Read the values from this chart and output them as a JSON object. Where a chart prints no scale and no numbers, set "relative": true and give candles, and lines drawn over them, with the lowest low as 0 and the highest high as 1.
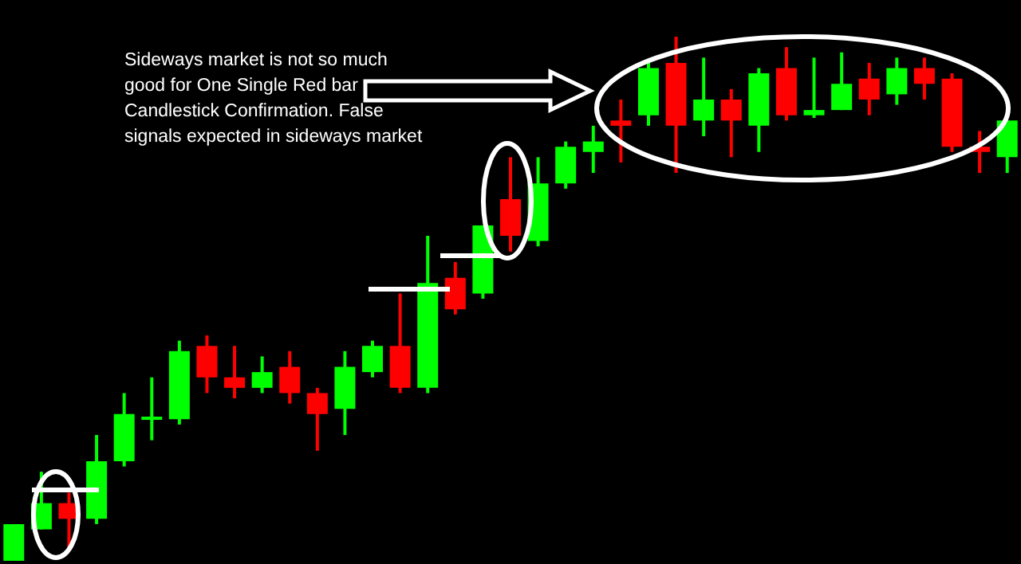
{
  "chart_data": {
    "type": "candlestick",
    "relative": true,
    "annotations": [
      "Sideways market is not so much good for One Single Red bar Candlestick Confirmation. False signals expected in sideways market"
    ],
    "categories": [
      null,
      null,
      null,
      null,
      null,
      null,
      null,
      null,
      null,
      null,
      null,
      null,
      null,
      null,
      null,
      null,
      null,
      null,
      null,
      null,
      null,
      null,
      null,
      null,
      null,
      null,
      null,
      null,
      null,
      null,
      null,
      null,
      null,
      null,
      null,
      null,
      null
    ],
    "ohlc": [
      [
        0.0,
        0.07,
        0.0,
        0.07
      ],
      [
        0.06,
        0.17,
        0.06,
        0.11
      ],
      [
        0.11,
        0.13,
        0.02,
        0.08
      ],
      [
        0.08,
        0.24,
        0.07,
        0.19
      ],
      [
        0.19,
        0.32,
        0.18,
        0.28
      ],
      [
        0.27,
        0.35,
        0.23,
        0.275
      ],
      [
        0.27,
        0.42,
        0.26,
        0.4
      ],
      [
        0.41,
        0.43,
        0.32,
        0.35
      ],
      [
        0.35,
        0.41,
        0.31,
        0.33
      ],
      [
        0.33,
        0.39,
        0.32,
        0.36
      ],
      [
        0.37,
        0.4,
        0.3,
        0.32
      ],
      [
        0.32,
        0.33,
        0.21,
        0.28
      ],
      [
        0.29,
        0.4,
        0.24,
        0.37
      ],
      [
        0.36,
        0.42,
        0.35,
        0.41
      ],
      [
        0.41,
        0.51,
        0.32,
        0.33
      ],
      [
        0.33,
        0.62,
        0.32,
        0.53
      ],
      [
        0.54,
        0.57,
        0.47,
        0.48
      ],
      [
        0.51,
        0.64,
        0.5,
        0.64
      ],
      [
        0.69,
        0.77,
        0.59,
        0.62
      ],
      [
        0.61,
        0.77,
        0.6,
        0.72
      ],
      [
        0.72,
        0.8,
        0.71,
        0.79
      ],
      [
        0.78,
        0.83,
        0.74,
        0.8
      ],
      [
        0.84,
        0.88,
        0.76,
        0.83
      ],
      [
        0.85,
        0.95,
        0.83,
        0.94
      ],
      [
        0.95,
        1.0,
        0.74,
        0.83
      ],
      [
        0.84,
        0.96,
        0.81,
        0.88
      ],
      [
        0.88,
        0.9,
        0.77,
        0.84
      ],
      [
        0.83,
        0.94,
        0.78,
        0.93
      ],
      [
        0.94,
        0.98,
        0.84,
        0.85
      ],
      [
        0.85,
        0.96,
        0.845,
        0.86
      ],
      [
        0.86,
        0.97,
        0.86,
        0.91
      ],
      [
        0.92,
        0.95,
        0.85,
        0.88
      ],
      [
        0.89,
        0.96,
        0.87,
        0.94
      ],
      [
        0.94,
        0.96,
        0.88,
        0.91
      ],
      [
        0.92,
        0.93,
        0.78,
        0.79
      ],
      [
        0.79,
        0.82,
        0.74,
        0.78
      ],
      [
        0.77,
        0.84,
        0.74,
        0.84
      ]
    ],
    "colors": [
      "#00ff00",
      "#00ff00",
      "#ff0000",
      "#00ff00",
      "#00ff00",
      "#00ff00",
      "#00ff00",
      "#ff0000",
      "#ff0000",
      "#00ff00",
      "#ff0000",
      "#ff0000",
      "#00ff00",
      "#00ff00",
      "#ff0000",
      "#00ff00",
      "#ff0000",
      "#00ff00",
      "#ff0000",
      "#00ff00",
      "#00ff00",
      "#00ff00",
      "#ff0000",
      "#00ff00",
      "#ff0000",
      "#00ff00",
      "#ff0000",
      "#00ff00",
      "#ff0000",
      "#00ff00",
      "#00ff00",
      "#ff0000",
      "#00ff00",
      "#ff0000",
      "#ff0000",
      "#ff0000",
      "#00ff00"
    ]
  }
}
